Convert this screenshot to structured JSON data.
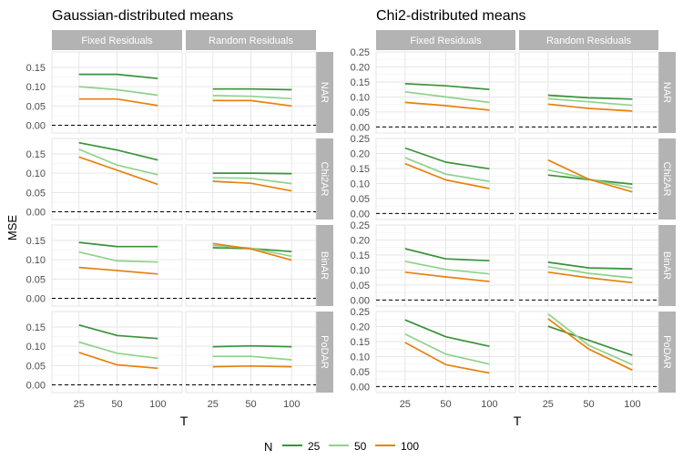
{
  "figure": {
    "shared_ylabel": "MSE",
    "legend_title": "N",
    "strip_cols": [
      "Fixed Residuals",
      "Random Residuals"
    ],
    "strip_rows": [
      "NAR",
      "Chi2AR",
      "BinAR",
      "PoDAR"
    ],
    "series_colors": {
      "25": "#3a923a",
      "50": "#8fd28a",
      "100": "#e6820e"
    }
  },
  "chart_data": [
    {
      "type": "line",
      "title": "Gaussian-distributed means",
      "xlabel": "T",
      "ylabel": "MSE",
      "x": [
        "25",
        "50",
        "100"
      ],
      "ylim": [
        -0.02,
        0.19
      ],
      "yticks": [
        "0.00",
        "0.05",
        "0.10",
        "0.15"
      ],
      "reference_line_y": 0,
      "legend": {
        "title": "N",
        "entries": [
          "25",
          "50",
          "100"
        ],
        "position": "bottom"
      },
      "grid": true,
      "panels": [
        {
          "row": "NAR",
          "col": "Fixed Residuals",
          "series": [
            {
              "name": "25",
              "values": [
                0.132,
                0.132,
                0.121
              ]
            },
            {
              "name": "50",
              "values": [
                0.1,
                0.092,
                0.078
              ]
            },
            {
              "name": "100",
              "values": [
                0.068,
                0.068,
                0.051
              ]
            }
          ]
        },
        {
          "row": "NAR",
          "col": "Random Residuals",
          "series": [
            {
              "name": "25",
              "values": [
                0.094,
                0.094,
                0.092
              ]
            },
            {
              "name": "50",
              "values": [
                0.077,
                0.075,
                0.069
              ]
            },
            {
              "name": "100",
              "values": [
                0.064,
                0.064,
                0.05
              ]
            }
          ]
        },
        {
          "row": "Chi2AR",
          "col": "Fixed Residuals",
          "series": [
            {
              "name": "25",
              "values": [
                0.179,
                0.16,
                0.134
              ]
            },
            {
              "name": "50",
              "values": [
                0.162,
                0.121,
                0.096
              ]
            },
            {
              "name": "100",
              "values": [
                0.142,
                0.108,
                0.071
              ]
            }
          ]
        },
        {
          "row": "Chi2AR",
          "col": "Random Residuals",
          "series": [
            {
              "name": "25",
              "values": [
                0.1,
                0.1,
                0.099
              ]
            },
            {
              "name": "50",
              "values": [
                0.088,
                0.087,
                0.073
              ]
            },
            {
              "name": "100",
              "values": [
                0.079,
                0.074,
                0.054
              ]
            }
          ]
        },
        {
          "row": "BinAR",
          "col": "Fixed Residuals",
          "series": [
            {
              "name": "25",
              "values": [
                0.145,
                0.134,
                0.134
              ]
            },
            {
              "name": "50",
              "values": [
                0.12,
                0.097,
                0.094
              ]
            },
            {
              "name": "100",
              "values": [
                0.08,
                0.072,
                0.063
              ]
            }
          ]
        },
        {
          "row": "BinAR",
          "col": "Random Residuals",
          "series": [
            {
              "name": "25",
              "values": [
                0.131,
                0.129,
                0.121
              ]
            },
            {
              "name": "50",
              "values": [
                0.137,
                0.13,
                0.109
              ]
            },
            {
              "name": "100",
              "values": [
                0.142,
                0.128,
                0.099
              ]
            }
          ]
        },
        {
          "row": "PoDAR",
          "col": "Fixed Residuals",
          "series": [
            {
              "name": "25",
              "values": [
                0.155,
                0.128,
                0.12
              ]
            },
            {
              "name": "50",
              "values": [
                0.111,
                0.082,
                0.069
              ]
            },
            {
              "name": "100",
              "values": [
                0.084,
                0.052,
                0.043
              ]
            }
          ]
        },
        {
          "row": "PoDAR",
          "col": "Random Residuals",
          "series": [
            {
              "name": "25",
              "values": [
                0.099,
                0.101,
                0.099
              ]
            },
            {
              "name": "50",
              "values": [
                0.074,
                0.074,
                0.065
              ]
            },
            {
              "name": "100",
              "values": [
                0.047,
                0.049,
                0.047
              ]
            }
          ]
        }
      ]
    },
    {
      "type": "line",
      "title": "Chi2-distributed means",
      "xlabel": "T",
      "ylabel": "MSE",
      "x": [
        "25",
        "50",
        "100"
      ],
      "ylim": [
        -0.02,
        0.25
      ],
      "yticks": [
        "0.00",
        "0.05",
        "0.10",
        "0.15",
        "0.20",
        "0.25"
      ],
      "reference_line_y": 0,
      "legend": {
        "title": "N",
        "entries": [
          "25",
          "50",
          "100"
        ],
        "position": "bottom"
      },
      "grid": true,
      "panels": [
        {
          "row": "NAR",
          "col": "Fixed Residuals",
          "series": [
            {
              "name": "25",
              "values": [
                0.144,
                0.137,
                0.125
              ]
            },
            {
              "name": "50",
              "values": [
                0.117,
                0.1,
                0.082
              ]
            },
            {
              "name": "100",
              "values": [
                0.082,
                0.071,
                0.056
              ]
            }
          ]
        },
        {
          "row": "NAR",
          "col": "Random Residuals",
          "series": [
            {
              "name": "25",
              "values": [
                0.106,
                0.097,
                0.093
              ]
            },
            {
              "name": "50",
              "values": [
                0.094,
                0.084,
                0.072
              ]
            },
            {
              "name": "100",
              "values": [
                0.076,
                0.062,
                0.053
              ]
            }
          ]
        },
        {
          "row": "Chi2AR",
          "col": "Fixed Residuals",
          "series": [
            {
              "name": "25",
              "values": [
                0.218,
                0.171,
                0.149
              ]
            },
            {
              "name": "50",
              "values": [
                0.186,
                0.131,
                0.107
              ]
            },
            {
              "name": "100",
              "values": [
                0.166,
                0.112,
                0.083
              ]
            }
          ]
        },
        {
          "row": "Chi2AR",
          "col": "Random Residuals",
          "series": [
            {
              "name": "25",
              "values": [
                0.128,
                0.113,
                0.098
              ]
            },
            {
              "name": "50",
              "values": [
                0.145,
                0.115,
                0.085
              ]
            },
            {
              "name": "100",
              "values": [
                0.178,
                0.114,
                0.072
              ]
            }
          ]
        },
        {
          "row": "BinAR",
          "col": "Fixed Residuals",
          "series": [
            {
              "name": "25",
              "values": [
                0.171,
                0.137,
                0.131
              ]
            },
            {
              "name": "50",
              "values": [
                0.129,
                0.102,
                0.087
              ]
            },
            {
              "name": "100",
              "values": [
                0.093,
                0.077,
                0.062
              ]
            }
          ]
        },
        {
          "row": "BinAR",
          "col": "Random Residuals",
          "series": [
            {
              "name": "25",
              "values": [
                0.126,
                0.107,
                0.104
              ]
            },
            {
              "name": "50",
              "values": [
                0.111,
                0.089,
                0.074
              ]
            },
            {
              "name": "100",
              "values": [
                0.093,
                0.074,
                0.058
              ]
            }
          ]
        },
        {
          "row": "PoDAR",
          "col": "Fixed Residuals",
          "series": [
            {
              "name": "25",
              "values": [
                0.222,
                0.166,
                0.134
              ]
            },
            {
              "name": "50",
              "values": [
                0.175,
                0.108,
                0.075
              ]
            },
            {
              "name": "100",
              "values": [
                0.147,
                0.073,
                0.045
              ]
            }
          ]
        },
        {
          "row": "PoDAR",
          "col": "Random Residuals",
          "series": [
            {
              "name": "25",
              "values": [
                0.201,
                0.154,
                0.104
              ]
            },
            {
              "name": "50",
              "values": [
                0.242,
                0.137,
                0.073
              ]
            },
            {
              "name": "100",
              "values": [
                0.226,
                0.125,
                0.055
              ]
            }
          ]
        }
      ]
    }
  ]
}
